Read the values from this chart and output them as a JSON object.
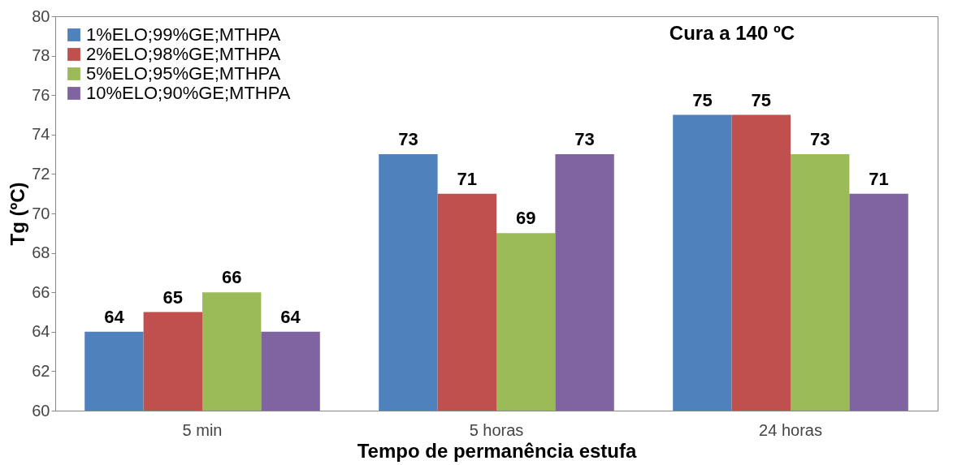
{
  "chart_data": {
    "type": "bar",
    "xlabel": "Tempo de permanência estufa",
    "ylabel": "Tg (ºC)",
    "categories": [
      "5  min",
      "5  horas",
      "24  horas"
    ],
    "series": [
      {
        "name": "1%ELO;99%GE;MTHPA",
        "color": "#4f81bd",
        "values": [
          64,
          73,
          75
        ]
      },
      {
        "name": "2%ELO;98%GE;MTHPA",
        "color": "#c0504d",
        "values": [
          65,
          71,
          75
        ]
      },
      {
        "name": "5%ELO;95%GE;MTHPA",
        "color": "#9bbb59",
        "values": [
          66,
          69,
          73
        ]
      },
      {
        "name": "10%ELO;90%GE;MTHPA",
        "color": "#8064a2",
        "values": [
          64,
          73,
          71
        ]
      }
    ],
    "ylim": [
      60,
      80
    ],
    "yticks": [
      60,
      62,
      64,
      66,
      68,
      70,
      72,
      74,
      76,
      78,
      80
    ],
    "grid": false,
    "legend": "top left",
    "data_labels": true,
    "annotations": [
      "Cura a 140 ºC"
    ]
  }
}
